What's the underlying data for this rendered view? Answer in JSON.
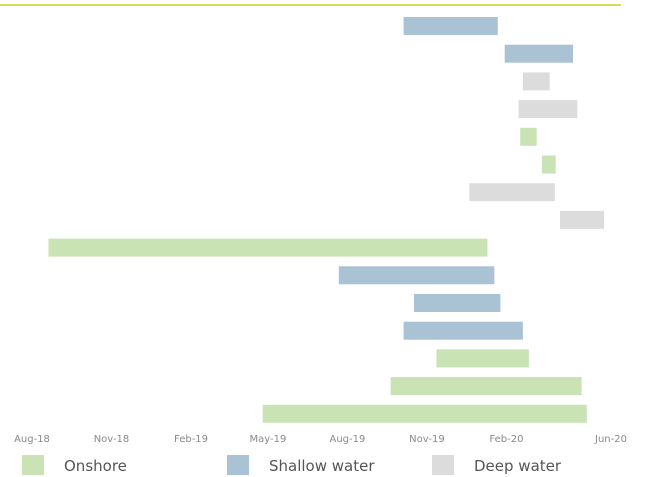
{
  "chart_data": {
    "type": "bar",
    "orientation": "horizontal",
    "layout": "gantt",
    "x_axis": {
      "type": "date",
      "min": "2018-08-01",
      "max": "2020-06-01",
      "ticks": [
        {
          "date": "2018-08-01",
          "label": "Aug-18"
        },
        {
          "date": "2018-11-01",
          "label": "Nov-18"
        },
        {
          "date": "2019-02-01",
          "label": "Feb-19"
        },
        {
          "date": "2019-05-01",
          "label": "May-19"
        },
        {
          "date": "2019-08-01",
          "label": "Aug-19"
        },
        {
          "date": "2019-11-01",
          "label": "Nov-19"
        },
        {
          "date": "2020-02-01",
          "label": "Feb-20"
        },
        {
          "date": "2020-06-01",
          "label": "Jun-20"
        }
      ]
    },
    "grid": false,
    "legend_position": "bottom",
    "series": [
      {
        "name": "Onshore",
        "color": "#c9e3b5"
      },
      {
        "name": "Shallow water",
        "color": "#a9c2d4"
      },
      {
        "name": "Deep water",
        "color": "#dcdcdc"
      }
    ],
    "tasks": [
      {
        "series": "Shallow water",
        "start": "2019-10-05",
        "end": "2020-01-22"
      },
      {
        "series": "Shallow water",
        "start": "2020-01-30",
        "end": "2020-04-18"
      },
      {
        "series": "Deep water",
        "start": "2020-02-20",
        "end": "2020-03-22"
      },
      {
        "series": "Deep water",
        "start": "2020-02-15",
        "end": "2020-04-23"
      },
      {
        "series": "Onshore",
        "start": "2020-02-17",
        "end": "2020-03-07"
      },
      {
        "series": "Onshore",
        "start": "2020-03-13",
        "end": "2020-03-29"
      },
      {
        "series": "Deep water",
        "start": "2019-12-20",
        "end": "2020-03-28"
      },
      {
        "series": "Deep water",
        "start": "2020-04-03",
        "end": "2020-05-24"
      },
      {
        "series": "Onshore",
        "start": "2018-08-20",
        "end": "2020-01-10"
      },
      {
        "series": "Shallow water",
        "start": "2019-07-22",
        "end": "2020-01-18"
      },
      {
        "series": "Shallow water",
        "start": "2019-10-17",
        "end": "2020-01-25"
      },
      {
        "series": "Shallow water",
        "start": "2019-10-05",
        "end": "2020-02-20"
      },
      {
        "series": "Onshore",
        "start": "2019-11-12",
        "end": "2020-02-27"
      },
      {
        "series": "Onshore",
        "start": "2019-09-20",
        "end": "2020-04-28"
      },
      {
        "series": "Onshore",
        "start": "2019-04-25",
        "end": "2020-05-04"
      }
    ]
  }
}
